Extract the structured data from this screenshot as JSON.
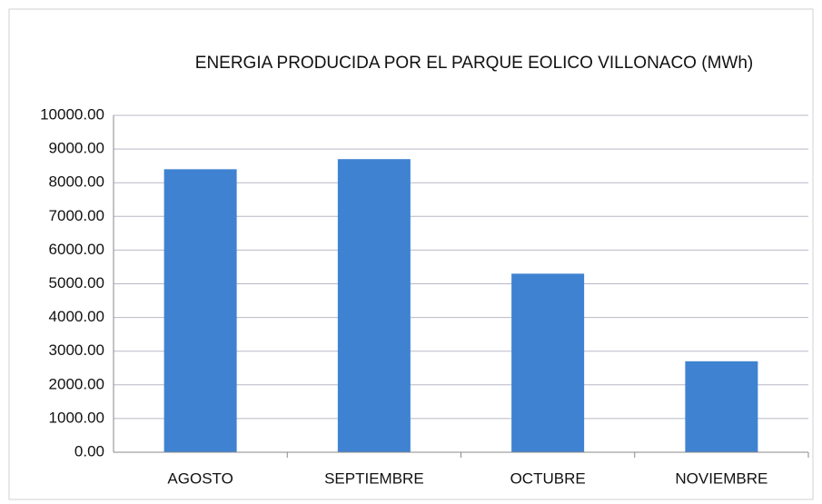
{
  "chart_data": {
    "type": "bar",
    "title": "ENERGIA PRODUCIDA POR EL PARQUE EOLICO VILLONACO (MWh)",
    "categories": [
      "AGOSTO",
      "SEPTIEMBRE",
      "OCTUBRE",
      "NOVIEMBRE"
    ],
    "values": [
      8400,
      8700,
      5300,
      2700
    ],
    "color": "#3f82d2",
    "ylim": [
      0,
      10000
    ],
    "yticks": [
      {
        "value": 0,
        "label": "0.00"
      },
      {
        "value": 1000,
        "label": "1000.00"
      },
      {
        "value": 2000,
        "label": "2000.00"
      },
      {
        "value": 3000,
        "label": "3000.00"
      },
      {
        "value": 4000,
        "label": "4000.00"
      },
      {
        "value": 5000,
        "label": "5000.00"
      },
      {
        "value": 6000,
        "label": "6000.00"
      },
      {
        "value": 7000,
        "label": "7000.00"
      },
      {
        "value": 8000,
        "label": "8000.00"
      },
      {
        "value": 9000,
        "label": "9000.00"
      },
      {
        "value": 10000,
        "label": "10000.00"
      }
    ],
    "grid": true
  }
}
